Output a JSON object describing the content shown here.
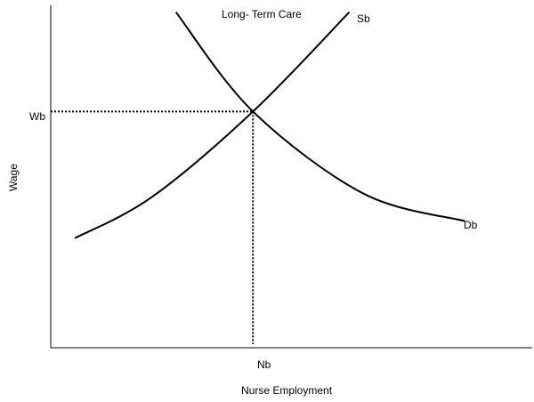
{
  "chart_data": {
    "type": "line",
    "title": "Long- Term Care",
    "xlabel": "Nurse Employment",
    "ylabel": "Wage",
    "xlim": [
      0,
      1
    ],
    "ylim": [
      0,
      1
    ],
    "series": [
      {
        "name": "Sb",
        "kind": "supply",
        "points": [
          [
            0.05,
            0.32
          ],
          [
            0.21,
            0.44
          ],
          [
            0.42,
            0.69
          ],
          [
            0.62,
            0.98
          ]
        ]
      },
      {
        "name": "Db",
        "kind": "demand",
        "points": [
          [
            0.26,
            0.98
          ],
          [
            0.42,
            0.69
          ],
          [
            0.65,
            0.45
          ],
          [
            0.86,
            0.37
          ]
        ]
      }
    ],
    "equilibrium": {
      "x": 0.42,
      "y": 0.69,
      "x_label": "Nb",
      "y_label": "Wb"
    },
    "grid": false,
    "legend": "none"
  }
}
